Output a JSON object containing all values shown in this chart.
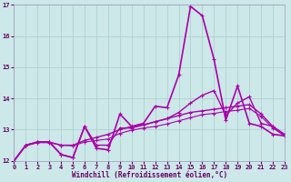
{
  "xlabel": "Windchill (Refroidissement éolien,°C)",
  "xlim": [
    0,
    23
  ],
  "ylim": [
    12,
    17
  ],
  "yticks": [
    12,
    13,
    14,
    15,
    16,
    17
  ],
  "xticks": [
    0,
    1,
    2,
    3,
    4,
    5,
    6,
    7,
    8,
    9,
    10,
    11,
    12,
    13,
    14,
    15,
    16,
    17,
    18,
    19,
    20,
    21,
    22,
    23
  ],
  "bg_color": "#cce8e8",
  "grid_color": "#aacccc",
  "line_color": "#aa00aa",
  "tick_color": "#660066",
  "lines": [
    {
      "x": [
        0,
        1,
        2,
        3,
        4,
        5,
        6,
        7,
        8,
        9,
        10,
        11,
        12,
        13,
        14,
        15,
        16,
        17,
        18,
        19,
        20,
        21,
        22,
        23
      ],
      "y": [
        12.0,
        12.5,
        12.6,
        12.6,
        12.2,
        12.1,
        13.1,
        12.4,
        12.35,
        13.5,
        13.1,
        13.2,
        13.75,
        13.7,
        14.75,
        16.95,
        16.65,
        15.25,
        13.3,
        14.4,
        13.2,
        13.1,
        12.85,
        12.8
      ],
      "lw": 1.2
    },
    {
      "x": [
        0,
        1,
        2,
        3,
        4,
        5,
        6,
        7,
        8,
        9,
        10,
        11,
        12,
        13,
        14,
        15,
        16,
        17,
        18,
        19,
        20,
        21,
        22,
        23
      ],
      "y": [
        12.0,
        12.5,
        12.6,
        12.6,
        12.5,
        12.5,
        12.65,
        12.75,
        12.85,
        13.0,
        13.1,
        13.15,
        13.25,
        13.35,
        13.45,
        13.55,
        13.6,
        13.65,
        13.7,
        13.75,
        13.8,
        13.5,
        13.1,
        12.85
      ],
      "lw": 1.0
    },
    {
      "x": [
        0,
        1,
        2,
        3,
        4,
        5,
        6,
        7,
        8,
        9,
        10,
        11,
        12,
        13,
        14,
        15,
        16,
        17,
        18,
        19,
        20,
        21,
        22,
        23
      ],
      "y": [
        12.0,
        12.5,
        12.6,
        12.6,
        12.2,
        12.1,
        13.1,
        12.5,
        12.5,
        13.05,
        13.05,
        13.15,
        13.25,
        13.35,
        13.55,
        13.85,
        14.1,
        14.25,
        13.45,
        13.85,
        14.05,
        13.2,
        13.1,
        12.8
      ],
      "lw": 1.0
    },
    {
      "x": [
        0,
        1,
        2,
        3,
        4,
        5,
        6,
        7,
        8,
        9,
        10,
        11,
        12,
        13,
        14,
        15,
        16,
        17,
        18,
        19,
        20,
        21,
        22,
        23
      ],
      "y": [
        12.0,
        12.48,
        12.58,
        12.58,
        12.5,
        12.48,
        12.6,
        12.65,
        12.7,
        12.88,
        12.98,
        13.05,
        13.1,
        13.18,
        13.28,
        13.38,
        13.48,
        13.52,
        13.58,
        13.62,
        13.68,
        13.42,
        13.05,
        12.8
      ],
      "lw": 0.8
    }
  ]
}
